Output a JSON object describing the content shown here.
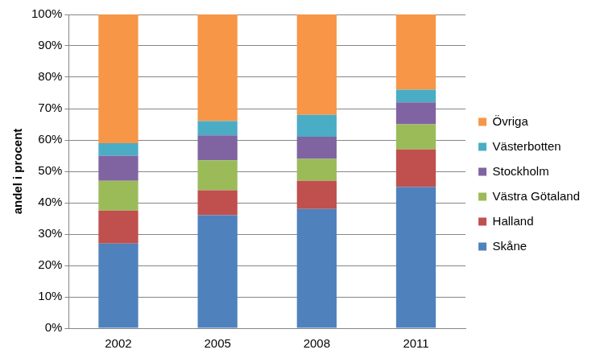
{
  "chart_data": {
    "type": "bar",
    "stacked": true,
    "y_label": "andel i procent",
    "categories": [
      "2002",
      "2005",
      "2008",
      "2011"
    ],
    "series": [
      {
        "name": "Skåne",
        "color": "#4F81BD",
        "values": [
          27,
          36,
          38,
          45
        ]
      },
      {
        "name": "Halland",
        "color": "#C0504D",
        "values": [
          10.5,
          8,
          9,
          12
        ]
      },
      {
        "name": "Västra Götaland",
        "color": "#9BBB59",
        "values": [
          9.5,
          9.5,
          7,
          8
        ]
      },
      {
        "name": "Stockholm",
        "color": "#8064A2",
        "values": [
          8,
          8,
          7,
          7
        ]
      },
      {
        "name": "Västerbotten",
        "color": "#4BACC6",
        "values": [
          4,
          4.5,
          7,
          4
        ]
      },
      {
        "name": "Övriga",
        "color": "#F79646",
        "values": [
          41,
          34,
          32,
          24
        ]
      }
    ],
    "ylim": [
      0,
      100
    ],
    "yticks": [
      {
        "value": 0,
        "label": "0%"
      },
      {
        "value": 10,
        "label": "10%"
      },
      {
        "value": 20,
        "label": "20%"
      },
      {
        "value": 30,
        "label": "30%"
      },
      {
        "value": 40,
        "label": "40%"
      },
      {
        "value": 50,
        "label": "50%"
      },
      {
        "value": 60,
        "label": "60%"
      },
      {
        "value": 70,
        "label": "70%"
      },
      {
        "value": 80,
        "label": "80%"
      },
      {
        "value": 90,
        "label": "90%"
      },
      {
        "value": 100,
        "label": "100%"
      }
    ],
    "grid": true,
    "legend": "right"
  }
}
